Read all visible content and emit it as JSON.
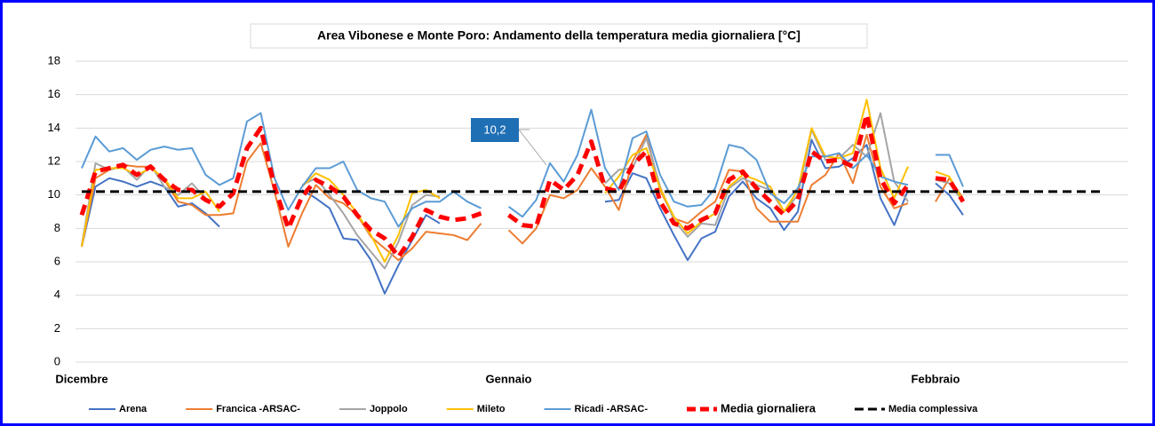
{
  "chart_data": {
    "type": "line",
    "title": "Area Vibonese e Monte Poro: Andamento della temperatura media giornaliera [°C]",
    "categories": [
      "Dicembre",
      null,
      null,
      null,
      null,
      null,
      null,
      null,
      null,
      null,
      null,
      null,
      null,
      null,
      null,
      null,
      null,
      null,
      null,
      null,
      null,
      null,
      null,
      null,
      null,
      null,
      null,
      null,
      null,
      null,
      null,
      "Gennaio",
      null,
      null,
      null,
      null,
      null,
      null,
      null,
      null,
      null,
      null,
      null,
      null,
      null,
      null,
      null,
      null,
      null,
      null,
      null,
      null,
      null,
      null,
      null,
      null,
      null,
      null,
      null,
      null,
      null,
      null,
      "Febbraio",
      null,
      null
    ],
    "ylim": [
      0,
      18
    ],
    "yticks": [
      0,
      2,
      4,
      6,
      8,
      10,
      12,
      14,
      16,
      18
    ],
    "grid": true,
    "series": [
      {
        "name": "Arena",
        "color": "#4472c4",
        "values": [
          6.9,
          10.5,
          11.0,
          10.8,
          10.5,
          10.8,
          10.5,
          9.3,
          9.5,
          8.9,
          8.1,
          null,
          null,
          null,
          null,
          null,
          10.3,
          9.8,
          9.2,
          7.4,
          7.3,
          6.1,
          4.1,
          5.8,
          7.3,
          8.8,
          8.3,
          null,
          null,
          null,
          null,
          null,
          null,
          null,
          null,
          null,
          null,
          null,
          9.6,
          9.7,
          11.3,
          11.0,
          9.2,
          7.6,
          6.1,
          7.4,
          7.8,
          9.9,
          10.8,
          9.8,
          9.2,
          7.9,
          9.0,
          13.3,
          11.6,
          11.7,
          12.2,
          13.0,
          9.8,
          8.2,
          10.3,
          null,
          10.7,
          10.0,
          8.8
        ]
      },
      {
        "name": "Francica -ARSAC-",
        "color": "#ed7d31",
        "values": [
          6.9,
          11.0,
          11.5,
          11.8,
          11.7,
          11.7,
          10.9,
          9.6,
          9.4,
          8.8,
          8.8,
          8.9,
          12.0,
          13.1,
          10.2,
          6.9,
          8.9,
          10.6,
          9.8,
          9.5,
          8.8,
          7.5,
          6.8,
          6.1,
          6.8,
          7.8,
          7.7,
          7.6,
          7.3,
          8.3,
          null,
          7.9,
          7.1,
          8.0,
          10.0,
          9.8,
          10.3,
          11.6,
          10.5,
          9.1,
          12.0,
          13.6,
          10.3,
          8.6,
          8.3,
          9.0,
          9.6,
          11.5,
          11.4,
          9.2,
          8.4,
          8.4,
          8.4,
          10.6,
          11.2,
          12.5,
          10.7,
          13.6,
          10.5,
          9.2,
          9.5,
          null,
          9.6,
          11.0,
          9.8
        ]
      },
      {
        "name": "Joppolo",
        "color": "#a5a5a5",
        "values": [
          7.0,
          11.9,
          11.5,
          11.7,
          10.9,
          11.8,
          10.5,
          10.0,
          10.7,
          9.8,
          null,
          null,
          null,
          null,
          null,
          null,
          10.6,
          11.0,
          10.0,
          8.9,
          7.6,
          6.6,
          5.6,
          7.2,
          9.4,
          10.0,
          9.9,
          null,
          null,
          null,
          null,
          null,
          null,
          null,
          null,
          null,
          null,
          null,
          10.7,
          11.5,
          11.6,
          13.4,
          10.5,
          8.5,
          7.5,
          8.3,
          8.2,
          10.4,
          11.0,
          10.6,
          10.3,
          9.0,
          10.0,
          13.9,
          12.1,
          12.2,
          13.0,
          12.3,
          14.9,
          10.8,
          9.6,
          null,
          10.9,
          10.7,
          9.6
        ]
      },
      {
        "name": "Mileto",
        "color": "#ffc000",
        "values": [
          6.9,
          11.5,
          11.6,
          11.6,
          11.2,
          11.6,
          11.0,
          9.8,
          9.8,
          10.2,
          9.0,
          null,
          null,
          null,
          null,
          null,
          10.5,
          11.3,
          10.9,
          10.0,
          8.9,
          7.6,
          6.0,
          7.6,
          10.1,
          10.3,
          9.8,
          null,
          null,
          null,
          null,
          null,
          null,
          null,
          null,
          null,
          null,
          null,
          10.1,
          11.1,
          12.4,
          12.8,
          10.4,
          8.7,
          7.7,
          8.4,
          8.9,
          10.5,
          11.2,
          10.9,
          10.5,
          9.0,
          10.3,
          14.0,
          12.3,
          12.2,
          12.5,
          15.7,
          11.6,
          9.8,
          11.7,
          null,
          11.4,
          11.1,
          9.6
        ]
      },
      {
        "name": "Ricadi -ARSAC-",
        "color": "#5b9bd5",
        "values": [
          11.6,
          13.5,
          12.6,
          12.8,
          12.1,
          12.7,
          12.9,
          12.7,
          12.8,
          11.2,
          10.6,
          11.0,
          14.4,
          14.9,
          11.0,
          9.1,
          10.5,
          11.6,
          11.6,
          12.0,
          10.3,
          9.8,
          9.6,
          8.1,
          9.2,
          9.6,
          9.6,
          10.2,
          9.6,
          9.2,
          null,
          9.3,
          8.7,
          9.7,
          11.9,
          10.8,
          12.4,
          15.1,
          11.6,
          10.3,
          13.4,
          13.8,
          11.2,
          9.6,
          9.3,
          9.4,
          10.4,
          13.0,
          12.8,
          12.1,
          10.1,
          9.5,
          10.4,
          12.3,
          12.3,
          12.5,
          11.6,
          12.4,
          11.1,
          10.8,
          10.6,
          null,
          12.4,
          12.4,
          10.5
        ]
      },
      {
        "name": "Media giornaliera",
        "color": "#ff0000",
        "dashed": true,
        "values": [
          8.8,
          11.4,
          11.6,
          11.8,
          11.2,
          11.7,
          10.9,
          10.3,
          10.3,
          9.7,
          9.3,
          10.1,
          12.8,
          14.0,
          10.5,
          8.0,
          9.9,
          10.9,
          10.5,
          9.9,
          8.8,
          7.9,
          7.4,
          6.3,
          7.5,
          9.1,
          8.7,
          8.5,
          8.6,
          8.9,
          null,
          8.8,
          8.2,
          8.1,
          10.9,
          10.3,
          11.2,
          13.2,
          10.4,
          10.2,
          11.8,
          12.6,
          9.6,
          8.3,
          8.0,
          8.5,
          8.9,
          10.9,
          11.4,
          10.4,
          9.6,
          8.8,
          9.7,
          12.6,
          12.0,
          12.1,
          11.7,
          14.8,
          11.0,
          9.5,
          10.6,
          null,
          11.0,
          10.9,
          9.6
        ]
      }
    ],
    "overall_mean": {
      "name": "Media complessiva",
      "color": "#000000",
      "dashed": true,
      "value": 10.2,
      "value_label": "10,2"
    }
  }
}
